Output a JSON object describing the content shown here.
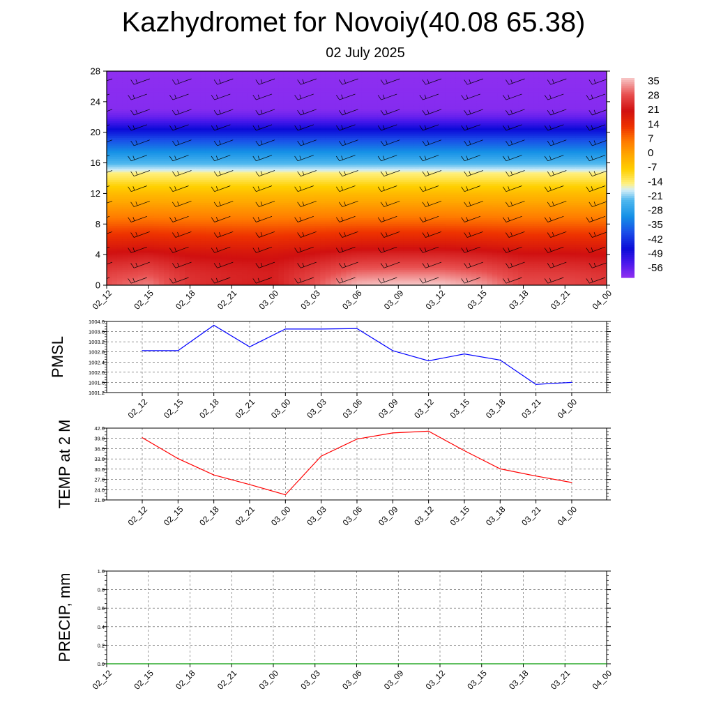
{
  "header": {
    "title": "Kazhydromet for Novoiy(40.08 65.38)",
    "subtitle": "02 July 2025"
  },
  "chart_data": [
    {
      "type": "heatmap",
      "name": "vertical-temperature-section",
      "x": [
        "02_12",
        "02_15",
        "02_18",
        "02_21",
        "03_00",
        "03_03",
        "03_06",
        "03_09",
        "03_12",
        "03_15",
        "03_18",
        "03_21",
        "04_00"
      ],
      "y_ticks": [
        0,
        4,
        8,
        12,
        16,
        20,
        24,
        28
      ],
      "ylim": [
        0,
        28
      ],
      "colorbar_labels": [
        "35",
        "28",
        "21",
        "14",
        "7",
        "0",
        "-7",
        "-14",
        "-21",
        "-28",
        "-35",
        "-42",
        "-49",
        "-56"
      ],
      "colorbar_range": [
        -60,
        38
      ],
      "color_stops": [
        {
          "v": 38,
          "c": "#f8c8c8"
        },
        {
          "v": 30,
          "c": "#e85050"
        },
        {
          "v": 22,
          "c": "#d01010"
        },
        {
          "v": 14,
          "c": "#ee3300"
        },
        {
          "v": 7,
          "c": "#ff7a00"
        },
        {
          "v": 0,
          "c": "#ffa800"
        },
        {
          "v": -7,
          "c": "#ffd000"
        },
        {
          "v": -14,
          "c": "#fff080"
        },
        {
          "v": -17,
          "c": "#d4eef8"
        },
        {
          "v": -22,
          "c": "#50b8ee"
        },
        {
          "v": -30,
          "c": "#1490e6"
        },
        {
          "v": -38,
          "c": "#1a4ce8"
        },
        {
          "v": -46,
          "c": "#0b0bd8"
        },
        {
          "v": -53,
          "c": "#4a18ec"
        },
        {
          "v": -60,
          "c": "#8f2ff0"
        }
      ],
      "profile_heights": [
        0,
        1,
        2,
        3,
        4,
        5,
        6,
        7,
        8,
        9,
        10,
        11,
        12,
        13,
        14,
        14.6,
        15,
        16,
        17,
        18,
        19,
        20,
        21,
        22,
        23,
        28
      ],
      "profile_base": [
        30,
        26,
        24,
        22,
        20,
        17,
        14,
        11,
        8,
        5,
        2,
        -1,
        -4,
        -8,
        -12,
        -14,
        -17,
        -23,
        -28,
        -33,
        -38,
        -44,
        -50,
        -56,
        -59,
        -60
      ],
      "surface_temps": [
        30,
        33,
        26,
        24,
        23,
        30,
        37,
        38,
        38,
        35,
        29,
        29,
        27
      ],
      "wind_levels": [
        1,
        3,
        5,
        7,
        9,
        11,
        13,
        15,
        17,
        19,
        21,
        23,
        25,
        27
      ],
      "wind_direction_deg": 250,
      "wind_barb_color": "#000000"
    },
    {
      "type": "line",
      "name": "pmsl",
      "ylabel": "PMSL",
      "categories": [
        "02_12",
        "02_15",
        "02_18",
        "02_21",
        "03_00",
        "03_03",
        "03_06",
        "03_09",
        "03_12",
        "03_15",
        "03_18",
        "03_21",
        "04_00"
      ],
      "values": [
        1002.85,
        1002.85,
        1003.85,
        1003.0,
        1003.7,
        1003.7,
        1003.72,
        1002.85,
        1002.45,
        1002.72,
        1002.48,
        1001.52,
        1001.6
      ],
      "ylim": [
        1001.2,
        1004.0
      ],
      "y_ticks": [
        "1001.2",
        "1001.6",
        "1002.0",
        "1002.4",
        "1002.8",
        "1003.2",
        "1003.6",
        "1004.0"
      ],
      "color": "#0000ff",
      "grid": true
    },
    {
      "type": "line",
      "name": "temp-2m",
      "ylabel": "TEMP at 2 M",
      "categories": [
        "02_12",
        "02_15",
        "02_18",
        "02_21",
        "03_00",
        "03_03",
        "03_06",
        "03_09",
        "03_12",
        "03_15",
        "03_18",
        "03_21",
        "04_00"
      ],
      "values": [
        39.2,
        33.1,
        28.3,
        25.5,
        22.5,
        33.8,
        38.8,
        40.6,
        41.1,
        35.4,
        30.1,
        28.0,
        26.1
      ],
      "ylim": [
        21.0,
        42.0
      ],
      "y_ticks": [
        "21.0",
        "24.0",
        "27.0",
        "30.0",
        "33.0",
        "36.0",
        "39.0",
        "42.0"
      ],
      "color": "#ff0000",
      "grid": true
    },
    {
      "type": "line",
      "name": "precip",
      "ylabel": "PRECIP, mm",
      "categories": [
        "02_12",
        "02_15",
        "02_18",
        "02_21",
        "03_00",
        "03_03",
        "03_06",
        "03_09",
        "03_12",
        "03_15",
        "03_18",
        "03_21",
        "04_00"
      ],
      "values": [
        0,
        0,
        0,
        0,
        0,
        0,
        0,
        0,
        0,
        0,
        0,
        0,
        0
      ],
      "ylim": [
        0,
        1.0
      ],
      "y_ticks": [
        "0.0",
        "0.2",
        "0.4",
        "0.6",
        "0.8",
        "1.0"
      ],
      "color": "#009900",
      "grid": true
    }
  ]
}
